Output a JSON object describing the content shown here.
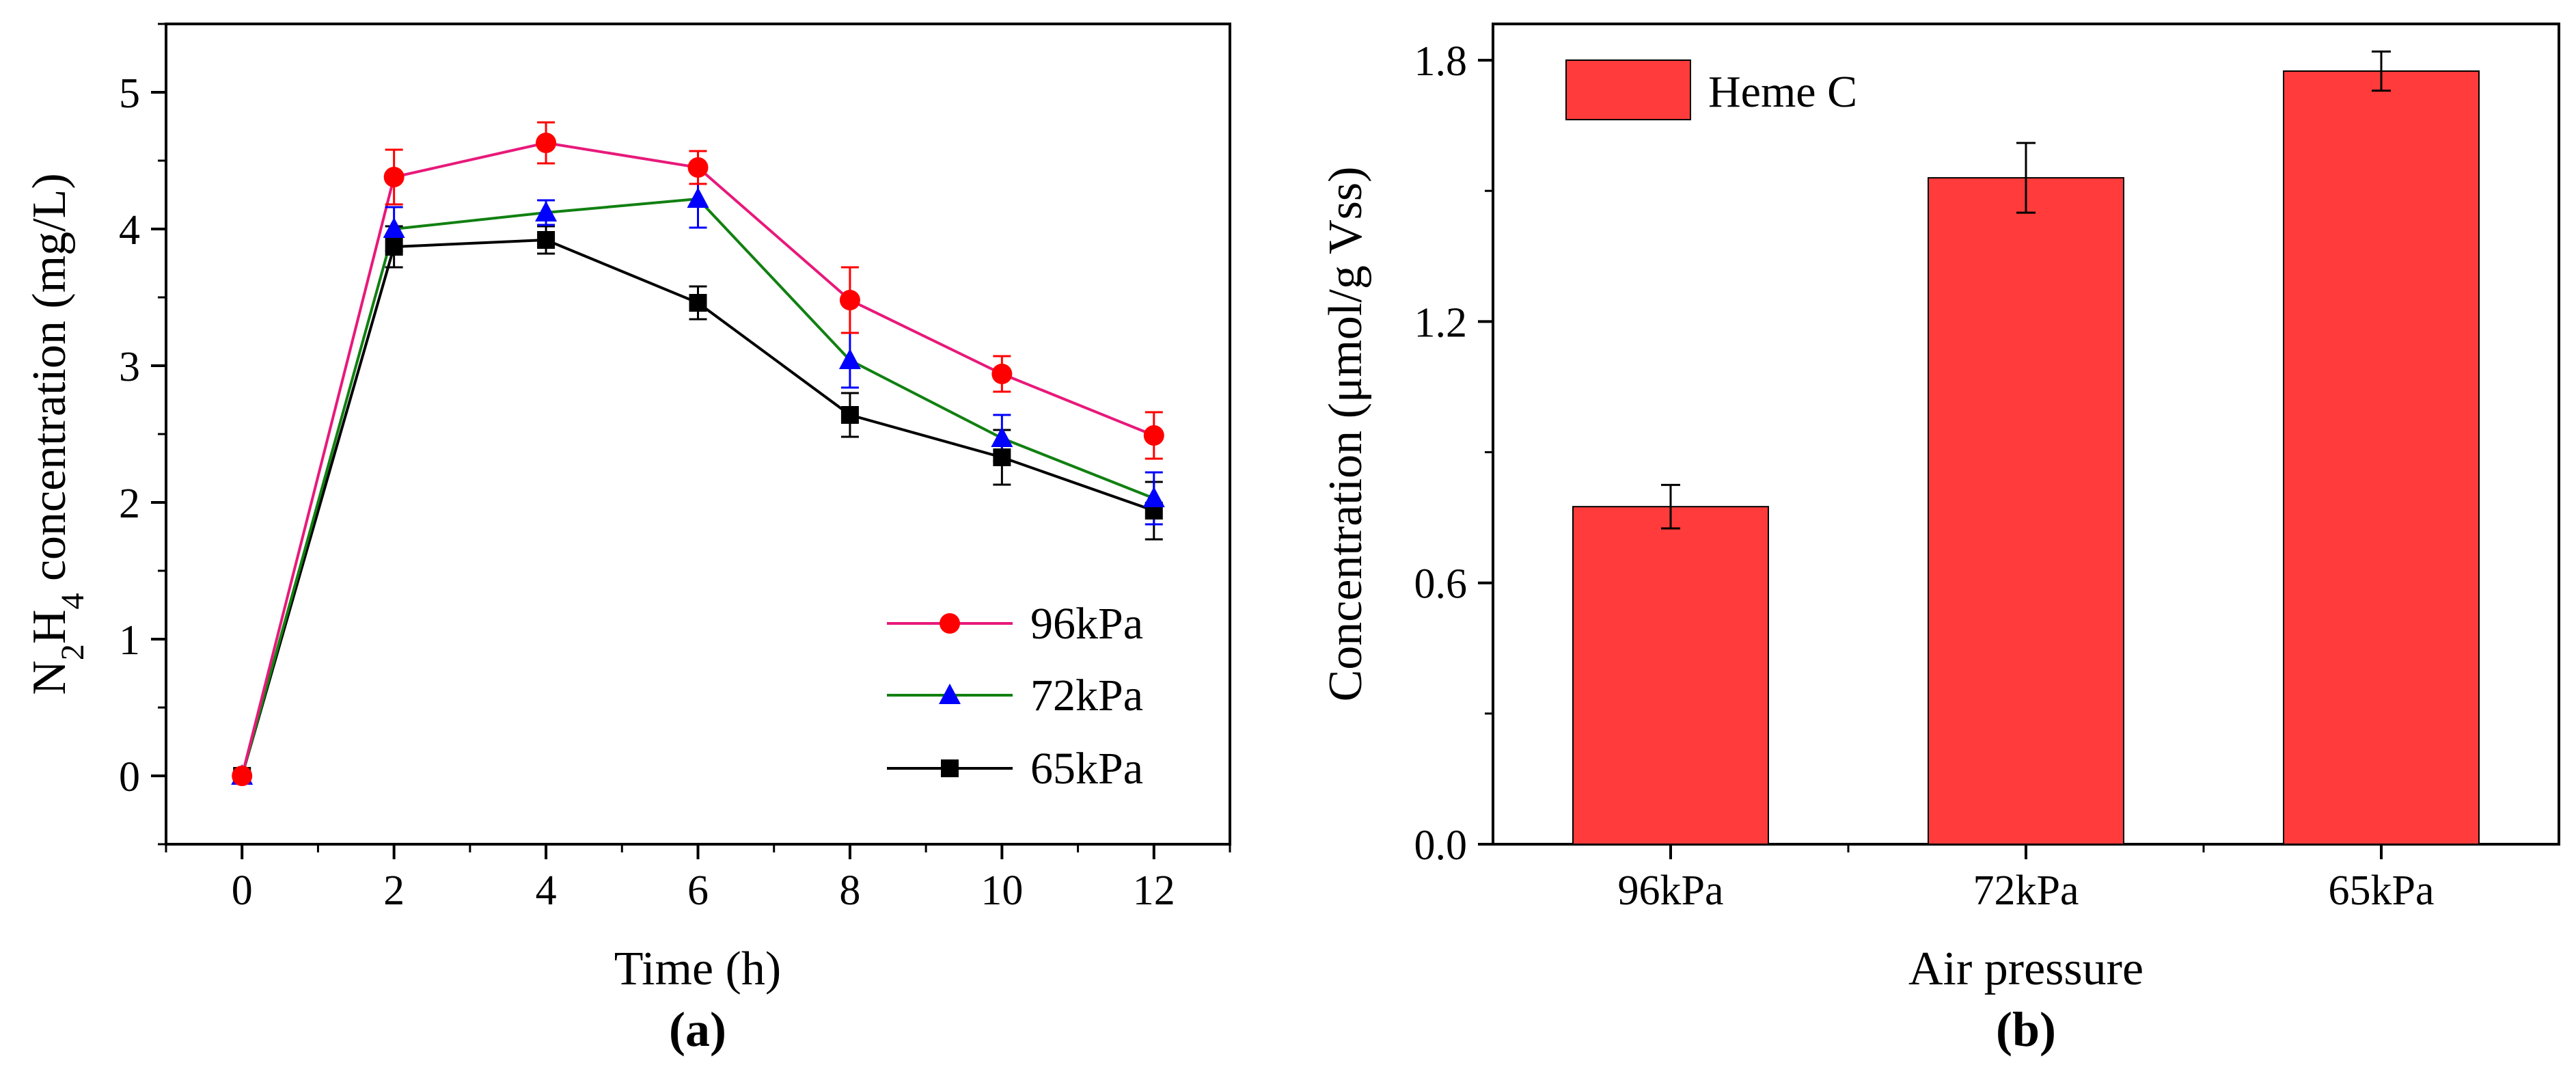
{
  "chart_data": [
    {
      "type": "line",
      "panel_label": "(a)",
      "title": "",
      "xlabel": "Time (h)",
      "ylabel_parts": [
        "N",
        "2",
        "H",
        "4",
        " concentration (mg/L)"
      ],
      "xlim": [
        -1,
        13
      ],
      "ylim": [
        -0.5,
        5.5
      ],
      "x_ticks": [
        0,
        2,
        4,
        6,
        8,
        10,
        12
      ],
      "x_tick_labels": [
        "0",
        "2",
        "4",
        "6",
        "8",
        "10",
        "12"
      ],
      "y_ticks": [
        0,
        1,
        2,
        3,
        4,
        5
      ],
      "y_tick_labels": [
        "0",
        "1",
        "2",
        "3",
        "4",
        "5"
      ],
      "legend_position": "bottom-right",
      "grid": false,
      "x": [
        0,
        2,
        4,
        6,
        8,
        10,
        12
      ],
      "series": [
        {
          "name": "96kPa",
          "color": "#e8197a",
          "marker": "circle",
          "marker_color": "#ff0000",
          "values": [
            0,
            4.38,
            4.63,
            4.45,
            3.48,
            2.94,
            2.49
          ],
          "errors": [
            0.02,
            0.2,
            0.15,
            0.12,
            0.24,
            0.13,
            0.17
          ]
        },
        {
          "name": "72kPa",
          "color": "#118011",
          "marker": "triangle",
          "marker_color": "#0000ff",
          "values": [
            0,
            4.0,
            4.12,
            4.22,
            3.04,
            2.47,
            2.03
          ],
          "errors": [
            0.02,
            0.16,
            0.09,
            0.21,
            0.2,
            0.17,
            0.19
          ]
        },
        {
          "name": "65kPa",
          "color": "#000000",
          "marker": "square",
          "marker_color": "#000000",
          "values": [
            0,
            3.87,
            3.92,
            3.46,
            2.64,
            2.33,
            1.94
          ],
          "errors": [
            0.02,
            0.15,
            0.1,
            0.12,
            0.16,
            0.2,
            0.21
          ]
        }
      ]
    },
    {
      "type": "bar",
      "panel_label": "(b)",
      "title": "",
      "xlabel": "Air pressure",
      "ylabel": "Concentration (μmol/g Vss)",
      "categories": [
        "96kPa",
        "72kPa",
        "65kPa"
      ],
      "ylim": [
        0,
        1.8833
      ],
      "y_ticks": [
        0,
        0.3,
        0.6,
        0.9,
        1.2,
        1.5,
        1.8
      ],
      "y_tick_labels": [
        "0.0",
        "",
        "0.6",
        "",
        "1.2",
        "",
        "1.8"
      ],
      "legend_position": "top-left",
      "grid": false,
      "series": [
        {
          "name": "Heme C",
          "color": "#ff3b3b",
          "values": [
            0.775,
            1.53,
            1.775
          ],
          "errors": [
            0.05,
            0.08,
            0.045
          ]
        }
      ]
    }
  ]
}
